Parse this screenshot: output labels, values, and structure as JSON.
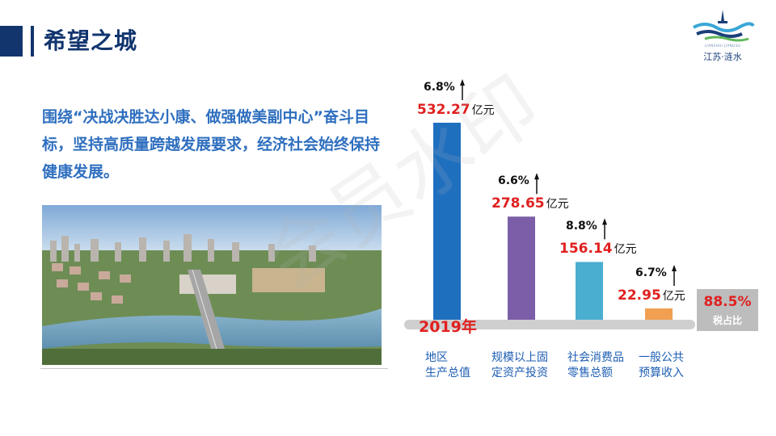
{
  "header": {
    "title": "希望之城"
  },
  "logo": {
    "text": "江苏·涟水",
    "subtext": "LIANSHUI JIANGSU"
  },
  "intro": {
    "text": "围绕“决战决胜达小康、做强做美副中心”奋斗目标，坚持高质量跨越发展要求，经济社会始终保持健康发展。"
  },
  "watermark": {
    "text": "会员水印"
  },
  "chart_data": {
    "type": "bar",
    "categories": [
      "地区生产总值",
      "规模以上固定资产投资",
      "社会消费品零售总额",
      "一般公共预算收入"
    ],
    "category_lines": [
      [
        "地区",
        "生产总值"
      ],
      [
        "规模以上固",
        "定资产投资"
      ],
      [
        "社会消费品",
        "零售总额"
      ],
      [
        "一般公共",
        "预算收入"
      ]
    ],
    "values": [
      532.27,
      278.65,
      156.14,
      22.95
    ],
    "value_labels": [
      "532.27",
      "278.65",
      "156.14",
      "22.95"
    ],
    "unit": "亿元",
    "growth": [
      "6.8%",
      "6.6%",
      "8.8%",
      "6.7%"
    ],
    "colors": [
      "#1f6fbf",
      "#7b5ea7",
      "#4aaed0",
      "#f0a050"
    ],
    "year_label": "2019年",
    "tax_share": {
      "value": "88.5%",
      "label": "税占比"
    },
    "ylim": [
      0,
      560
    ]
  }
}
